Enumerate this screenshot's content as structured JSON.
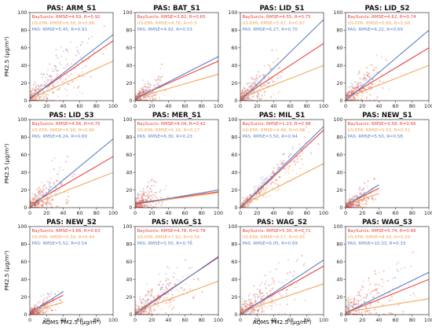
{
  "figure": {
    "y_axis_label": "PM2.5 (μg/m³)",
    "x_axis_label": "AQMS PM2.5 (μg/m³)"
  },
  "colors": {
    "baysurcls": "#e8413c",
    "us_epa": "#f2a65a",
    "pas": "#5b7fc7"
  },
  "chart_data": [
    {
      "type": "scatter",
      "title": "PAS: ARM_S1",
      "xlim": [
        0,
        100
      ],
      "ylim": [
        0,
        100
      ],
      "xticks": [
        0,
        20,
        40,
        60,
        80,
        100
      ],
      "yticks": [
        0,
        20,
        40,
        60,
        80,
        100
      ],
      "stats": [
        "BaySurcls: RMSE=4.59, R=0.92",
        "US-EPA: RMSE=6.56, R=0.86",
        "PAS: RMSE=5.45, R=0.91"
      ],
      "series": [
        {
          "name": "BaySurcls",
          "fit": [
            [
              0,
              3
            ],
            [
              100,
              68
            ]
          ]
        },
        {
          "name": "US-EPA",
          "fit": [
            [
              0,
              2
            ],
            [
              100,
              45
            ]
          ]
        },
        {
          "name": "PAS",
          "fit": [
            [
              0,
              2
            ],
            [
              100,
              75
            ]
          ]
        }
      ],
      "cloud": {
        "x_max": 60,
        "y_center_slope": 0.72,
        "spread": 12
      }
    },
    {
      "type": "scatter",
      "title": "PAS: BAT_S1",
      "xlim": [
        0,
        100
      ],
      "ylim": [
        0,
        100
      ],
      "xticks": [
        0,
        20,
        40,
        60,
        80,
        100
      ],
      "yticks": [
        0,
        20,
        40,
        60,
        80,
        100
      ],
      "stats": [
        "BaySurcls: RMSE=3.82, R=0.65",
        "US-EPA: RMSE=4.76, R=0.5",
        "PAS: RMSE=4.92, R=0.53"
      ],
      "series": [
        {
          "name": "BaySurcls",
          "fit": [
            [
              0,
              3
            ],
            [
              100,
              45
            ]
          ]
        },
        {
          "name": "US-EPA",
          "fit": [
            [
              0,
              3
            ],
            [
              100,
              30
            ]
          ]
        },
        {
          "name": "PAS",
          "fit": [
            [
              0,
              2
            ],
            [
              100,
              50
            ]
          ]
        }
      ],
      "cloud": {
        "x_max": 25,
        "y_center_slope": 0.5,
        "spread": 6
      }
    },
    {
      "type": "scatter",
      "title": "PAS: LID_S1",
      "xlim": [
        0,
        100
      ],
      "ylim": [
        0,
        100
      ],
      "xticks": [
        0,
        20,
        40,
        60,
        80,
        100
      ],
      "yticks": [
        0,
        20,
        40,
        60,
        80,
        100
      ],
      "stats": [
        "BaySurcls: RMSE=4.55, R=0.75",
        "US-EPA: RMSE=5.67, R=0.67",
        "PAS: RMSE=6.27, R=0.70"
      ],
      "series": [
        {
          "name": "BaySurcls",
          "fit": [
            [
              0,
              3
            ],
            [
              100,
              65
            ]
          ]
        },
        {
          "name": "US-EPA",
          "fit": [
            [
              0,
              3
            ],
            [
              100,
              40
            ]
          ]
        },
        {
          "name": "PAS",
          "fit": [
            [
              0,
              0
            ],
            [
              100,
              92
            ]
          ]
        }
      ],
      "cloud": {
        "x_max": 35,
        "y_center_slope": 0.7,
        "spread": 9
      }
    },
    {
      "type": "scatter",
      "title": "PAS: LID_S2",
      "xlim": [
        0,
        100
      ],
      "ylim": [
        0,
        100
      ],
      "xticks": [
        0,
        20,
        40,
        60,
        80,
        100
      ],
      "yticks": [
        0,
        20,
        40,
        60,
        80,
        100
      ],
      "stats": [
        "BaySurcls: RMSE=4.62, R=0.74",
        "US-EPA: RMSE=5.89, R=0.66",
        "PAS: RMSE=6.22, R=0.69"
      ],
      "series": [
        {
          "name": "BaySurcls",
          "fit": [
            [
              0,
              3
            ],
            [
              100,
              60
            ]
          ]
        },
        {
          "name": "US-EPA",
          "fit": [
            [
              0,
              3
            ],
            [
              100,
              40
            ]
          ]
        },
        {
          "name": "PAS",
          "fit": [
            [
              0,
              0
            ],
            [
              100,
              80
            ]
          ]
        }
      ],
      "cloud": {
        "x_max": 35,
        "y_center_slope": 0.65,
        "spread": 9
      }
    },
    {
      "type": "scatter",
      "title": "PAS: LID_S3",
      "xlim": [
        0,
        100
      ],
      "ylim": [
        0,
        100
      ],
      "xticks": [
        0,
        20,
        40,
        60,
        80,
        100
      ],
      "yticks": [
        0,
        20,
        40,
        60,
        80,
        100
      ],
      "stats": [
        "BaySurcls: RMSE=4.56, R=0.75",
        "US-EPA: RMSE=5.98, R=0.66",
        "PAS: RMSE=6.24, R=0.69"
      ],
      "series": [
        {
          "name": "BaySurcls",
          "fit": [
            [
              0,
              3
            ],
            [
              100,
              58
            ]
          ]
        },
        {
          "name": "US-EPA",
          "fit": [
            [
              0,
              3
            ],
            [
              100,
              40
            ]
          ]
        },
        {
          "name": "PAS",
          "fit": [
            [
              0,
              0
            ],
            [
              100,
              78
            ]
          ]
        }
      ],
      "cloud": {
        "x_max": 35,
        "y_center_slope": 0.65,
        "spread": 9
      }
    },
    {
      "type": "scatter",
      "title": "PAS: MER_S1",
      "xlim": [
        0,
        100
      ],
      "ylim": [
        0,
        100
      ],
      "xticks": [
        0,
        20,
        40,
        60,
        80,
        100
      ],
      "yticks": [
        0,
        20,
        40,
        60,
        80,
        100
      ],
      "stats": [
        "BaySurcls: RMSE=4.04, R=0.42",
        "US-EPA: RMSE=5.16, R=0.27",
        "PAS: RMSE=6.30, R=0.23"
      ],
      "series": [
        {
          "name": "BaySurcls",
          "fit": [
            [
              0,
              5
            ],
            [
              100,
              18
            ]
          ]
        },
        {
          "name": "US-EPA",
          "fit": [
            [
              0,
              4
            ],
            [
              100,
              17
            ]
          ]
        },
        {
          "name": "PAS",
          "fit": [
            [
              0,
              4
            ],
            [
              100,
              20
            ]
          ]
        }
      ],
      "cloud": {
        "x_max": 25,
        "y_center_slope": 0.5,
        "spread": 10
      }
    },
    {
      "type": "scatter",
      "title": "PAS: MIL_S1",
      "xlim": [
        0,
        100
      ],
      "ylim": [
        0,
        100
      ],
      "xticks": [
        0,
        20,
        40,
        60,
        80,
        100
      ],
      "yticks": [
        0,
        20,
        40,
        60,
        80,
        100
      ],
      "stats": [
        "BaySurcls: RMSE=1.23, R=0.98",
        "US-EPA: RMSE=4.48, R=0.88",
        "PAS: RMSE=3.50, R=0.94"
      ],
      "series": [
        {
          "name": "BaySurcls",
          "fit": [
            [
              0,
              0
            ],
            [
              100,
              88
            ]
          ]
        },
        {
          "name": "US-EPA",
          "fit": [
            [
              0,
              2
            ],
            [
              100,
              50
            ]
          ]
        },
        {
          "name": "PAS",
          "fit": [
            [
              0,
              0
            ],
            [
              100,
              92
            ]
          ]
        }
      ],
      "cloud": {
        "x_max": 60,
        "y_center_slope": 0.85,
        "spread": 4
      }
    },
    {
      "type": "scatter",
      "title": "PAS: NEW_S1",
      "xlim": [
        0,
        100
      ],
      "ylim": [
        0,
        100
      ],
      "xticks": [
        0,
        20,
        40,
        60,
        80,
        100
      ],
      "yticks": [
        0,
        20,
        40,
        60,
        80,
        100
      ],
      "stats": [
        "BaySurcls: RMSE=3.58, R=0.66",
        "US-EPA: RMSE=5.53, R=0.51",
        "PAS: RMSE=5.50, R=0.58"
      ],
      "series": [
        {
          "name": "BaySurcls",
          "fit": [
            [
              0,
              3
            ],
            [
              40,
              22
            ]
          ]
        },
        {
          "name": "US-EPA",
          "fit": [
            [
              0,
              3
            ],
            [
              40,
              16
            ]
          ]
        },
        {
          "name": "PAS",
          "fit": [
            [
              0,
              2
            ],
            [
              40,
              26
            ]
          ]
        }
      ],
      "cloud": {
        "x_max": 25,
        "y_center_slope": 0.55,
        "spread": 5
      }
    },
    {
      "type": "scatter",
      "title": "PAS: NEW_S2",
      "xlim": [
        0,
        100
      ],
      "ylim": [
        0,
        100
      ],
      "xticks": [
        0,
        20,
        40,
        60,
        80,
        100
      ],
      "yticks": [
        0,
        20,
        40,
        60,
        80,
        100
      ],
      "stats": [
        "BaySurcls: RMSE=3.66, R=0.63",
        "US-EPA: RMSE=5.34, R=0.44",
        "PAS: RMSE=5.52, R=0.54"
      ],
      "series": [
        {
          "name": "BaySurcls",
          "fit": [
            [
              0,
              3
            ],
            [
              40,
              22
            ]
          ]
        },
        {
          "name": "US-EPA",
          "fit": [
            [
              0,
              3
            ],
            [
              40,
              14
            ]
          ]
        },
        {
          "name": "PAS",
          "fit": [
            [
              0,
              2
            ],
            [
              40,
              26
            ]
          ]
        }
      ],
      "cloud": {
        "x_max": 25,
        "y_center_slope": 0.5,
        "spread": 5
      }
    },
    {
      "type": "scatter",
      "title": "PAS: WAG_S1",
      "xlim": [
        0,
        100
      ],
      "ylim": [
        0,
        100
      ],
      "xticks": [
        0,
        20,
        40,
        60,
        80,
        100
      ],
      "yticks": [
        0,
        20,
        40,
        60,
        80,
        100
      ],
      "stats": [
        "BaySurcls: RMSE=4.78, R=0.78",
        "US-EPA: RMSE=7.92, R=0.56",
        "PAS: RMSE=5.50, R=0.76"
      ],
      "series": [
        {
          "name": "BaySurcls",
          "fit": [
            [
              0,
              2
            ],
            [
              100,
              65
            ]
          ]
        },
        {
          "name": "US-EPA",
          "fit": [
            [
              0,
              3
            ],
            [
              100,
              38
            ]
          ]
        },
        {
          "name": "PAS",
          "fit": [
            [
              0,
              0
            ],
            [
              100,
              66
            ]
          ]
        }
      ],
      "cloud": {
        "x_max": 55,
        "y_center_slope": 0.6,
        "spread": 10
      }
    },
    {
      "type": "scatter",
      "title": "PAS: WAG_S2",
      "xlim": [
        0,
        100
      ],
      "ylim": [
        0,
        100
      ],
      "xticks": [
        0,
        20,
        40,
        60,
        80,
        100
      ],
      "yticks": [
        0,
        20,
        40,
        60,
        80,
        100
      ],
      "stats": [
        "BaySurcls: RMSE=5.30, R=0.71",
        "US-EPA: RMSE=6.57, R=0.65",
        "PAS: RMSE=6.05, R=0.69"
      ],
      "series": [
        {
          "name": "BaySurcls",
          "fit": [
            [
              0,
              2
            ],
            [
              100,
              55
            ]
          ]
        },
        {
          "name": "US-EPA",
          "fit": [
            [
              0,
              3
            ],
            [
              100,
              35
            ]
          ]
        },
        {
          "name": "PAS",
          "fit": [
            [
              0,
              0
            ],
            [
              100,
              62
            ]
          ]
        }
      ],
      "cloud": {
        "x_max": 55,
        "y_center_slope": 0.6,
        "spread": 11
      }
    },
    {
      "type": "scatter",
      "title": "PAS: WAG_S3",
      "xlim": [
        0,
        100
      ],
      "ylim": [
        0,
        100
      ],
      "xticks": [
        0,
        20,
        40,
        60,
        80,
        100
      ],
      "yticks": [
        0,
        20,
        40,
        60,
        80,
        100
      ],
      "stats": [
        "BaySurcls: RMSE=5.74, R=0.66",
        "US-EPA: RMSE=8.34, R=0.29",
        "PAS: RMSE=10.33, R=0.33"
      ],
      "series": [
        {
          "name": "BaySurcls",
          "fit": [
            [
              0,
              2
            ],
            [
              100,
              40
            ]
          ]
        },
        {
          "name": "US-EPA",
          "fit": [
            [
              0,
              3
            ],
            [
              100,
              18
            ]
          ]
        },
        {
          "name": "PAS",
          "fit": [
            [
              0,
              2
            ],
            [
              100,
              48
            ]
          ]
        }
      ],
      "cloud": {
        "x_max": 55,
        "y_center_slope": 0.45,
        "spread": 14
      }
    }
  ]
}
